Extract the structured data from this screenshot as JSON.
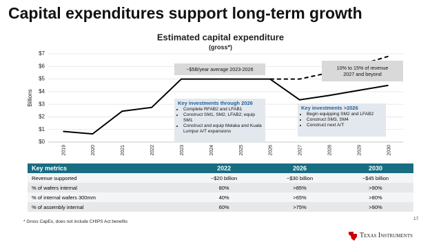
{
  "title": "Capital expenditures support long-term growth",
  "chart_data": {
    "type": "line",
    "title": "Estimated capital expenditure",
    "subtitle": "(gross*)",
    "y_label": "Billions",
    "categories": [
      "2019",
      "2020",
      "2021",
      "2022",
      "2023",
      "2024",
      "2025",
      "2026",
      "2027",
      "2028",
      "2029",
      "2030"
    ],
    "series": [
      {
        "color": "#000000",
        "dash": false,
        "values": [
          0.85,
          0.65,
          2.45,
          2.75,
          5.0,
          5.0,
          5.0,
          5.0,
          3.35,
          3.7,
          4.1,
          4.5
        ]
      },
      {
        "color": "#000000",
        "dash": true,
        "values": [
          null,
          null,
          null,
          null,
          null,
          null,
          null,
          5.0,
          5.0,
          5.5,
          6.1,
          6.8
        ]
      }
    ],
    "ylim": [
      0,
      7
    ],
    "yticks": [
      {
        "value": 0,
        "label": "$0"
      },
      {
        "value": 1,
        "label": "$1"
      },
      {
        "value": 2,
        "label": "$2"
      },
      {
        "value": 3,
        "label": "$3"
      },
      {
        "value": 4,
        "label": "$4"
      },
      {
        "value": 5,
        "label": "$5"
      },
      {
        "value": 6,
        "label": "$6"
      },
      {
        "value": 7,
        "label": "$7"
      }
    ],
    "grid": true,
    "annotations": [
      {
        "text": "~$5B/year average 2023-2026"
      },
      {
        "text": "10% to 15% of revenue 2027 and beyond"
      }
    ],
    "boxes": [
      {
        "title": "Key investments through 2026",
        "bullets": [
          "Complete RFAB2 and LFAB1",
          "Construct SM1, SM2, LFAB2; equip SM1",
          "Construct and equip Melaka and Kuala Lumpur A/T expansions"
        ]
      },
      {
        "title": "Key investments >2026",
        "bullets": [
          "Begin equipping SM2 and LFAB2",
          "Construct SM3, SM4",
          "Construct next A/T"
        ]
      }
    ]
  },
  "table": {
    "header": [
      "Key metrics",
      "2022",
      "2026",
      "2030"
    ],
    "rows": [
      [
        "Revenue supported",
        "~$20 billion",
        "~$30 billion",
        "~$45 billion"
      ],
      [
        "% of wafers internal",
        "80%",
        ">85%",
        ">90%"
      ],
      [
        "% of internal wafers 300mm",
        "40%",
        ">65%",
        ">80%"
      ],
      [
        "% of assembly internal",
        "60%",
        ">75%",
        ">90%"
      ]
    ]
  },
  "footnote": "* Gross CapEx, does not include CHIPS Act benefits",
  "page_number": "17",
  "logo": "Texas Instruments"
}
